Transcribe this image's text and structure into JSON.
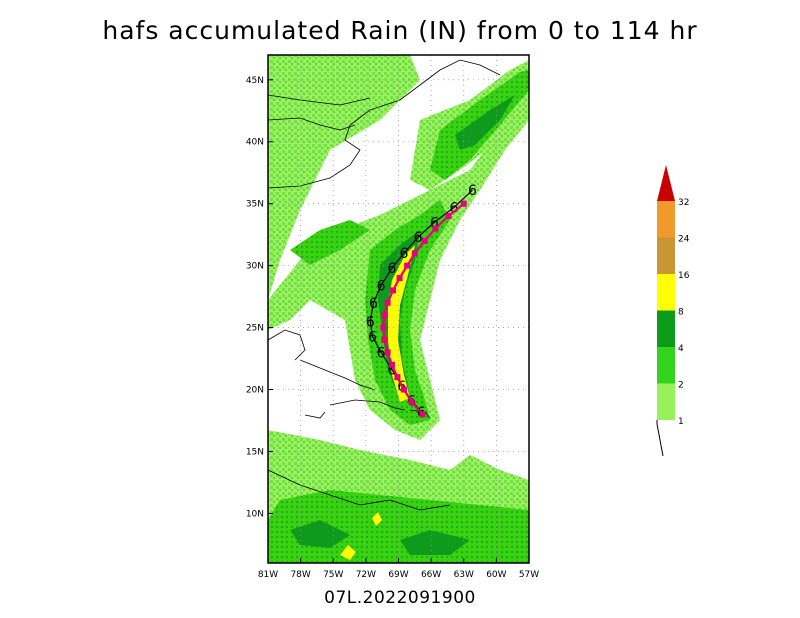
{
  "title": "hafs accumulated Rain (IN) from 0 to 114 hr",
  "footer": "07L.2022091900",
  "map": {
    "lon_range": [
      -81,
      -57
    ],
    "lat_range": [
      6,
      47
    ],
    "lon_ticks": [
      {
        "value": -81,
        "label": "81W"
      },
      {
        "value": -78,
        "label": "78W"
      },
      {
        "value": -75,
        "label": "75W"
      },
      {
        "value": -72,
        "label": "72W"
      },
      {
        "value": -69,
        "label": "69W"
      },
      {
        "value": -66,
        "label": "66W"
      },
      {
        "value": -63,
        "label": "63W"
      },
      {
        "value": -60,
        "label": "60W"
      },
      {
        "value": -57,
        "label": "57W"
      }
    ],
    "lat_ticks": [
      {
        "value": 10,
        "label": "10N"
      },
      {
        "value": 15,
        "label": "15N"
      },
      {
        "value": 20,
        "label": "20N"
      },
      {
        "value": 25,
        "label": "25N"
      },
      {
        "value": 30,
        "label": "30N"
      },
      {
        "value": 35,
        "label": "35N"
      },
      {
        "value": 40,
        "label": "40N"
      },
      {
        "value": 45,
        "label": "45N"
      }
    ],
    "track_observed": [
      [
        -66.8,
        18.0
      ],
      [
        -67.8,
        19.0
      ],
      [
        -68.5,
        20.0
      ],
      [
        -69.1,
        21.0
      ],
      [
        -69.6,
        22.0
      ],
      [
        -70.0,
        23.0
      ],
      [
        -70.3,
        24.0
      ],
      [
        -70.4,
        25.0
      ],
      [
        -70.3,
        26.0
      ],
      [
        -70.0,
        27.0
      ],
      [
        -69.5,
        28.0
      ],
      [
        -68.9,
        29.0
      ],
      [
        -68.2,
        30.0
      ],
      [
        -67.5,
        31.0
      ],
      [
        -66.6,
        32.0
      ],
      [
        -65.6,
        33.0
      ],
      [
        -64.4,
        34.0
      ],
      [
        -63.0,
        35.0
      ]
    ],
    "track_forecast": [
      [
        -66.9,
        18.2
      ],
      [
        -67.8,
        19.1
      ],
      [
        -68.7,
        20.3
      ],
      [
        -69.6,
        21.6
      ],
      [
        -70.6,
        23.0
      ],
      [
        -71.4,
        24.3
      ],
      [
        -71.6,
        25.5
      ],
      [
        -71.3,
        27.0
      ],
      [
        -70.6,
        28.4
      ],
      [
        -69.6,
        29.8
      ],
      [
        -68.5,
        31.0
      ],
      [
        -67.2,
        32.3
      ],
      [
        -65.7,
        33.5
      ],
      [
        -63.9,
        34.7
      ],
      [
        -62.2,
        36.1
      ]
    ],
    "rain_colors": [
      "#98f05a",
      "#38d20e",
      "#0e9a1c",
      "#ffff00",
      "#c8963c",
      "#f0a030",
      "#ff2d78"
    ]
  },
  "colorbar": {
    "labels": [
      "1",
      "2",
      "4",
      "8",
      "16",
      "24",
      "32"
    ],
    "colors": [
      "#98f05a",
      "#34d41e",
      "#0c9c1c",
      "#ffff00",
      "#c89634",
      "#f09a2c",
      "#c80000"
    ]
  }
}
